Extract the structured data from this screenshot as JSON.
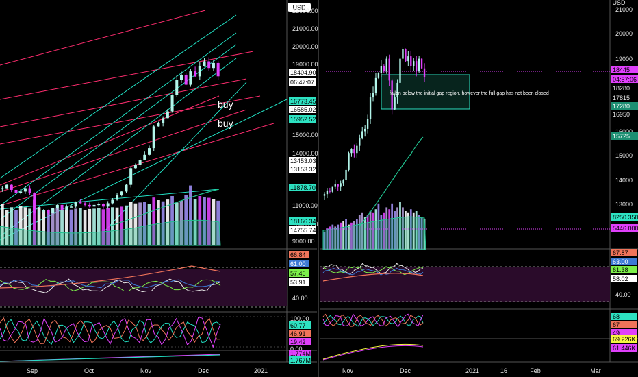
{
  "colors": {
    "bg": "#000000",
    "bull": "#b2f5ea",
    "bear": "#e040fb",
    "trend_magenta": "#ff2d6f",
    "trend_teal": "#22e3c6",
    "ma": "#21c28f",
    "rsi_band": "#2a0b2a"
  },
  "left_panel": {
    "currency": "USD",
    "buy_labels": [
      "buy",
      "buy"
    ],
    "price_axis_ticks": [
      "22000.00",
      "21000.00",
      "20000.00",
      "19000.00",
      "15000.00",
      "14000.00",
      "11000.00",
      "10000.00",
      "9000.00"
    ],
    "price_tags": [
      {
        "text": "18404.90",
        "bg": "#ffffff",
        "fg": "#000000"
      },
      {
        "text": "06:47:07",
        "bg": "#ffffff",
        "fg": "#000000"
      },
      {
        "text": "16773.45",
        "bg": "#2de2c2",
        "fg": "#000000"
      },
      {
        "text": "16585.02",
        "bg": "#ffffff",
        "fg": "#000000"
      },
      {
        "text": "15952.52",
        "bg": "#2de2c2",
        "fg": "#000000"
      },
      {
        "text": "13453.03",
        "bg": "#ffffff",
        "fg": "#000000"
      },
      {
        "text": "13153.32",
        "bg": "#ffffff",
        "fg": "#000000"
      },
      {
        "text": "11878.70",
        "bg": "#2de2c2",
        "fg": "#000000"
      },
      {
        "text": "18166.348",
        "bg": "#2de2c2",
        "fg": "#000000"
      },
      {
        "text": "14755.741",
        "bg": "#ffffff",
        "fg": "#000000"
      }
    ],
    "rsi_tags": [
      {
        "text": "66.84",
        "bg": "#f0745a",
        "fg": "#000000"
      },
      {
        "text": "61.00",
        "bg": "#3d7bd6",
        "fg": "#ffffff"
      },
      {
        "text": "57.46",
        "bg": "#7cf04a",
        "fg": "#000000"
      },
      {
        "text": "53.91",
        "bg": "#ffffff",
        "fg": "#000000"
      }
    ],
    "rsi_axis": "40.00",
    "stoch_tags": [
      {
        "text": "100.00",
        "bg": "#000000",
        "fg": "#e6e6e6"
      },
      {
        "text": "60.77",
        "bg": "#2de2c2",
        "fg": "#000000"
      },
      {
        "text": "46.91",
        "bg": "#f0745a",
        "fg": "#000000"
      },
      {
        "text": "19.42",
        "bg": "#e040fb",
        "fg": "#000000"
      },
      {
        "text": "0.00",
        "bg": "#000000",
        "fg": "#e6e6e6"
      }
    ],
    "obv_tags": [
      {
        "text": "1.774M",
        "bg": "#e040fb",
        "fg": "#000000"
      },
      {
        "text": "1.767M",
        "bg": "#2de2c2",
        "fg": "#000000"
      }
    ],
    "x_labels": [
      "Sep",
      "Oct",
      "Nov",
      "Dec",
      "2021"
    ]
  },
  "right_panel": {
    "currency": "USD",
    "annotation": "fallen below the initial gap region, however the full gap has not been closed",
    "price_axis_ticks": [
      "21000",
      "20000",
      "19000",
      "16000",
      "15000",
      "14000",
      "13000"
    ],
    "price_tags": [
      {
        "text": "18445",
        "bg": "#e040fb",
        "fg": "#000000"
      },
      {
        "text": "04:57:06",
        "bg": "#e040fb",
        "fg": "#000000"
      },
      {
        "text": "18280",
        "bg": "#000000",
        "fg": "#e6e6e6"
      },
      {
        "text": "17815",
        "bg": "#000000",
        "fg": "#e6e6e6"
      },
      {
        "text": "17280",
        "bg": "#1c8f72",
        "fg": "#ffffff"
      },
      {
        "text": "16950",
        "bg": "#000000",
        "fg": "#e6e6e6"
      },
      {
        "text": "15725",
        "bg": "#1c8f72",
        "fg": "#ffffff"
      },
      {
        "text": "8250.350",
        "bg": "#2de2c2",
        "fg": "#000000"
      },
      {
        "text": "5446.000",
        "bg": "#e040fb",
        "fg": "#000000"
      }
    ],
    "rsi_tags": [
      {
        "text": "67.87",
        "bg": "#f0745a",
        "fg": "#000000"
      },
      {
        "text": "63.00",
        "bg": "#3d7bd6",
        "fg": "#ffffff"
      },
      {
        "text": "61.38",
        "bg": "#7cf04a",
        "fg": "#000000"
      },
      {
        "text": "58.02",
        "bg": "#ffffff",
        "fg": "#000000"
      }
    ],
    "rsi_axis": "40.00",
    "stoch_tags": [
      {
        "text": "68",
        "bg": "#2de2c2",
        "fg": "#000000"
      },
      {
        "text": "67",
        "bg": "#f0745a",
        "fg": "#000000"
      },
      {
        "text": "49",
        "bg": "#e040fb",
        "fg": "#000000"
      }
    ],
    "obv_tags": [
      {
        "text": "69.226K",
        "bg": "#f5f542",
        "fg": "#000000"
      },
      {
        "text": "61.446K",
        "bg": "#e040fb",
        "fg": "#000000"
      }
    ],
    "x_labels": [
      "Nov",
      "Dec",
      "2021",
      "16",
      "Feb",
      "Mar"
    ]
  },
  "chart_data": [
    {
      "type": "candlestick",
      "title": "",
      "ylabel": "USD",
      "ylim": [
        8600,
        22400
      ],
      "x_labels": [
        "Sep",
        "Oct",
        "Nov",
        "Dec",
        "2021"
      ],
      "close_approx": [
        11700,
        11900,
        11600,
        11400,
        11500,
        11700,
        11400,
        10200,
        10300,
        10400,
        10200,
        10500,
        10700,
        10400,
        10600,
        10600,
        10900,
        10800,
        10700,
        10600,
        10700,
        10750,
        10600,
        10800,
        11000,
        11300,
        11500,
        11900,
        12900,
        13100,
        13400,
        13700,
        14100,
        15400,
        15600,
        15900,
        16300,
        17300,
        18200,
        18500,
        17900,
        18700,
        18400,
        19000,
        19300,
        18900,
        19200,
        18404
      ],
      "volume_approx": [
        14000,
        12000,
        13000,
        12000,
        13500,
        13000,
        12500,
        15500,
        13000,
        12000,
        12000,
        12500,
        12800,
        12000,
        12200,
        12200,
        12500,
        12600,
        12000,
        12400,
        12500,
        12700,
        12300,
        12800,
        13000,
        12900,
        13200,
        13600,
        14800,
        14300,
        14600,
        14900,
        14200,
        16300,
        15400,
        15000,
        15600,
        16800,
        14600,
        15200,
        17200,
        20400,
        15800,
        16800,
        16400,
        16200,
        15800,
        15200
      ]
    },
    {
      "type": "candlestick",
      "title": "",
      "ylabel": "USD",
      "ylim": [
        12500,
        21400
      ],
      "x_labels": [
        "Nov",
        "Dec",
        "2021",
        "16",
        "Feb",
        "Mar"
      ],
      "close_approx": [
        13600,
        13750,
        13700,
        13900,
        14000,
        13900,
        14050,
        14200,
        14600,
        15300,
        15450,
        15300,
        15600,
        15900,
        16200,
        16300,
        16700,
        17600,
        17800,
        18400,
        18600,
        18900,
        18700,
        19200,
        18300,
        17100,
        17600,
        18200,
        19200,
        19600,
        19100,
        19300,
        18900,
        19100,
        18700,
        19200,
        18800,
        18445
      ],
      "gap_zone": [
        17280,
        18445
      ],
      "ma_approx": [
        12900,
        13050,
        13250,
        13500,
        13800,
        14200,
        14600,
        15050,
        15400,
        15725
      ]
    }
  ]
}
